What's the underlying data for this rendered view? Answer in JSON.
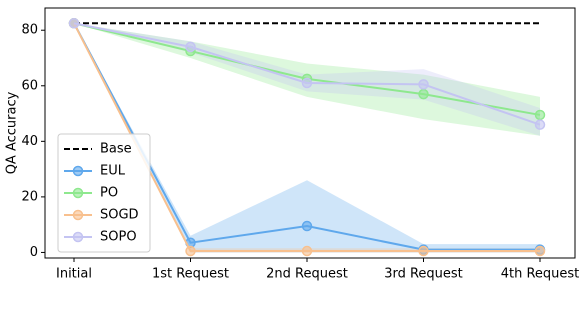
{
  "chart_data": {
    "type": "line",
    "ylabel": "QA Accuracy",
    "categories": [
      "Initial",
      "1st Request",
      "2nd Request",
      "3rd Request",
      "4th Request"
    ],
    "ylim": [
      -2,
      88
    ],
    "yticks": [
      0,
      20,
      40,
      60,
      80
    ],
    "legend": "lower left",
    "series": [
      {
        "name": "Base",
        "color": "#000000",
        "dash": true,
        "markers": false,
        "values": [
          82.5,
          82.5,
          82.5,
          82.5,
          82.5
        ]
      },
      {
        "name": "EUL",
        "color": "#5fa8ec",
        "dash": false,
        "markers": true,
        "values": [
          82.5,
          3.5,
          9.5,
          1,
          1
        ],
        "lower": [
          82.5,
          0,
          0,
          0,
          0
        ],
        "upper": [
          82.5,
          6,
          26,
          3,
          3
        ]
      },
      {
        "name": "PO",
        "color": "#8ee88e",
        "dash": false,
        "markers": true,
        "values": [
          82.5,
          72.5,
          62.5,
          57,
          49.5
        ],
        "lower": [
          82.5,
          70,
          56,
          48,
          42
        ],
        "upper": [
          82.5,
          76,
          68,
          64,
          56
        ]
      },
      {
        "name": "SOGD",
        "color": "#f8c08e",
        "dash": false,
        "markers": true,
        "values": [
          82.5,
          0.5,
          0.5,
          0.5,
          0.5
        ],
        "lower": [
          82.5,
          0,
          0,
          0,
          0
        ],
        "upper": [
          82.5,
          1.5,
          1.5,
          1.5,
          1.5
        ]
      },
      {
        "name": "SOPO",
        "color": "#c4c4f2",
        "dash": false,
        "markers": true,
        "values": [
          82.5,
          74,
          61,
          60.5,
          46
        ],
        "lower": [
          82.5,
          72,
          58,
          55,
          42
        ],
        "upper": [
          82.5,
          76,
          64,
          66,
          52
        ]
      }
    ]
  }
}
